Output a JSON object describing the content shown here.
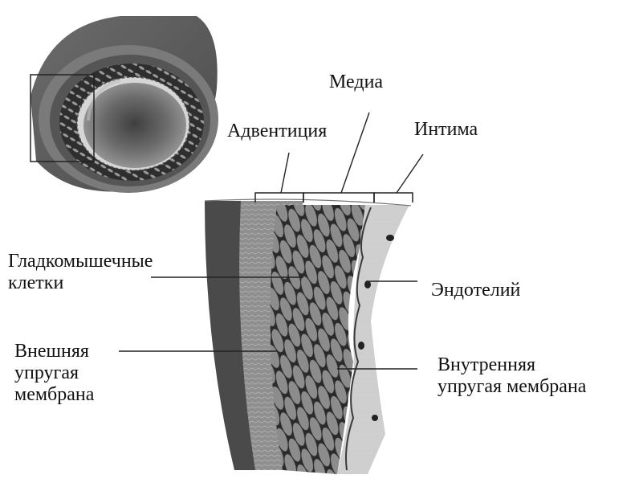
{
  "labels": {
    "media": "Медиа",
    "adventitia": "Адвентиция",
    "intima": "Интима",
    "smooth_muscle": [
      "Гладкомышечные",
      "клетки"
    ],
    "endothelium": "Эндотелий",
    "external_elastic": [
      "Внешняя",
      "упругая",
      "мембрана"
    ],
    "internal_elastic": [
      "Внутренняя",
      "упругая мембрана"
    ]
  }
}
